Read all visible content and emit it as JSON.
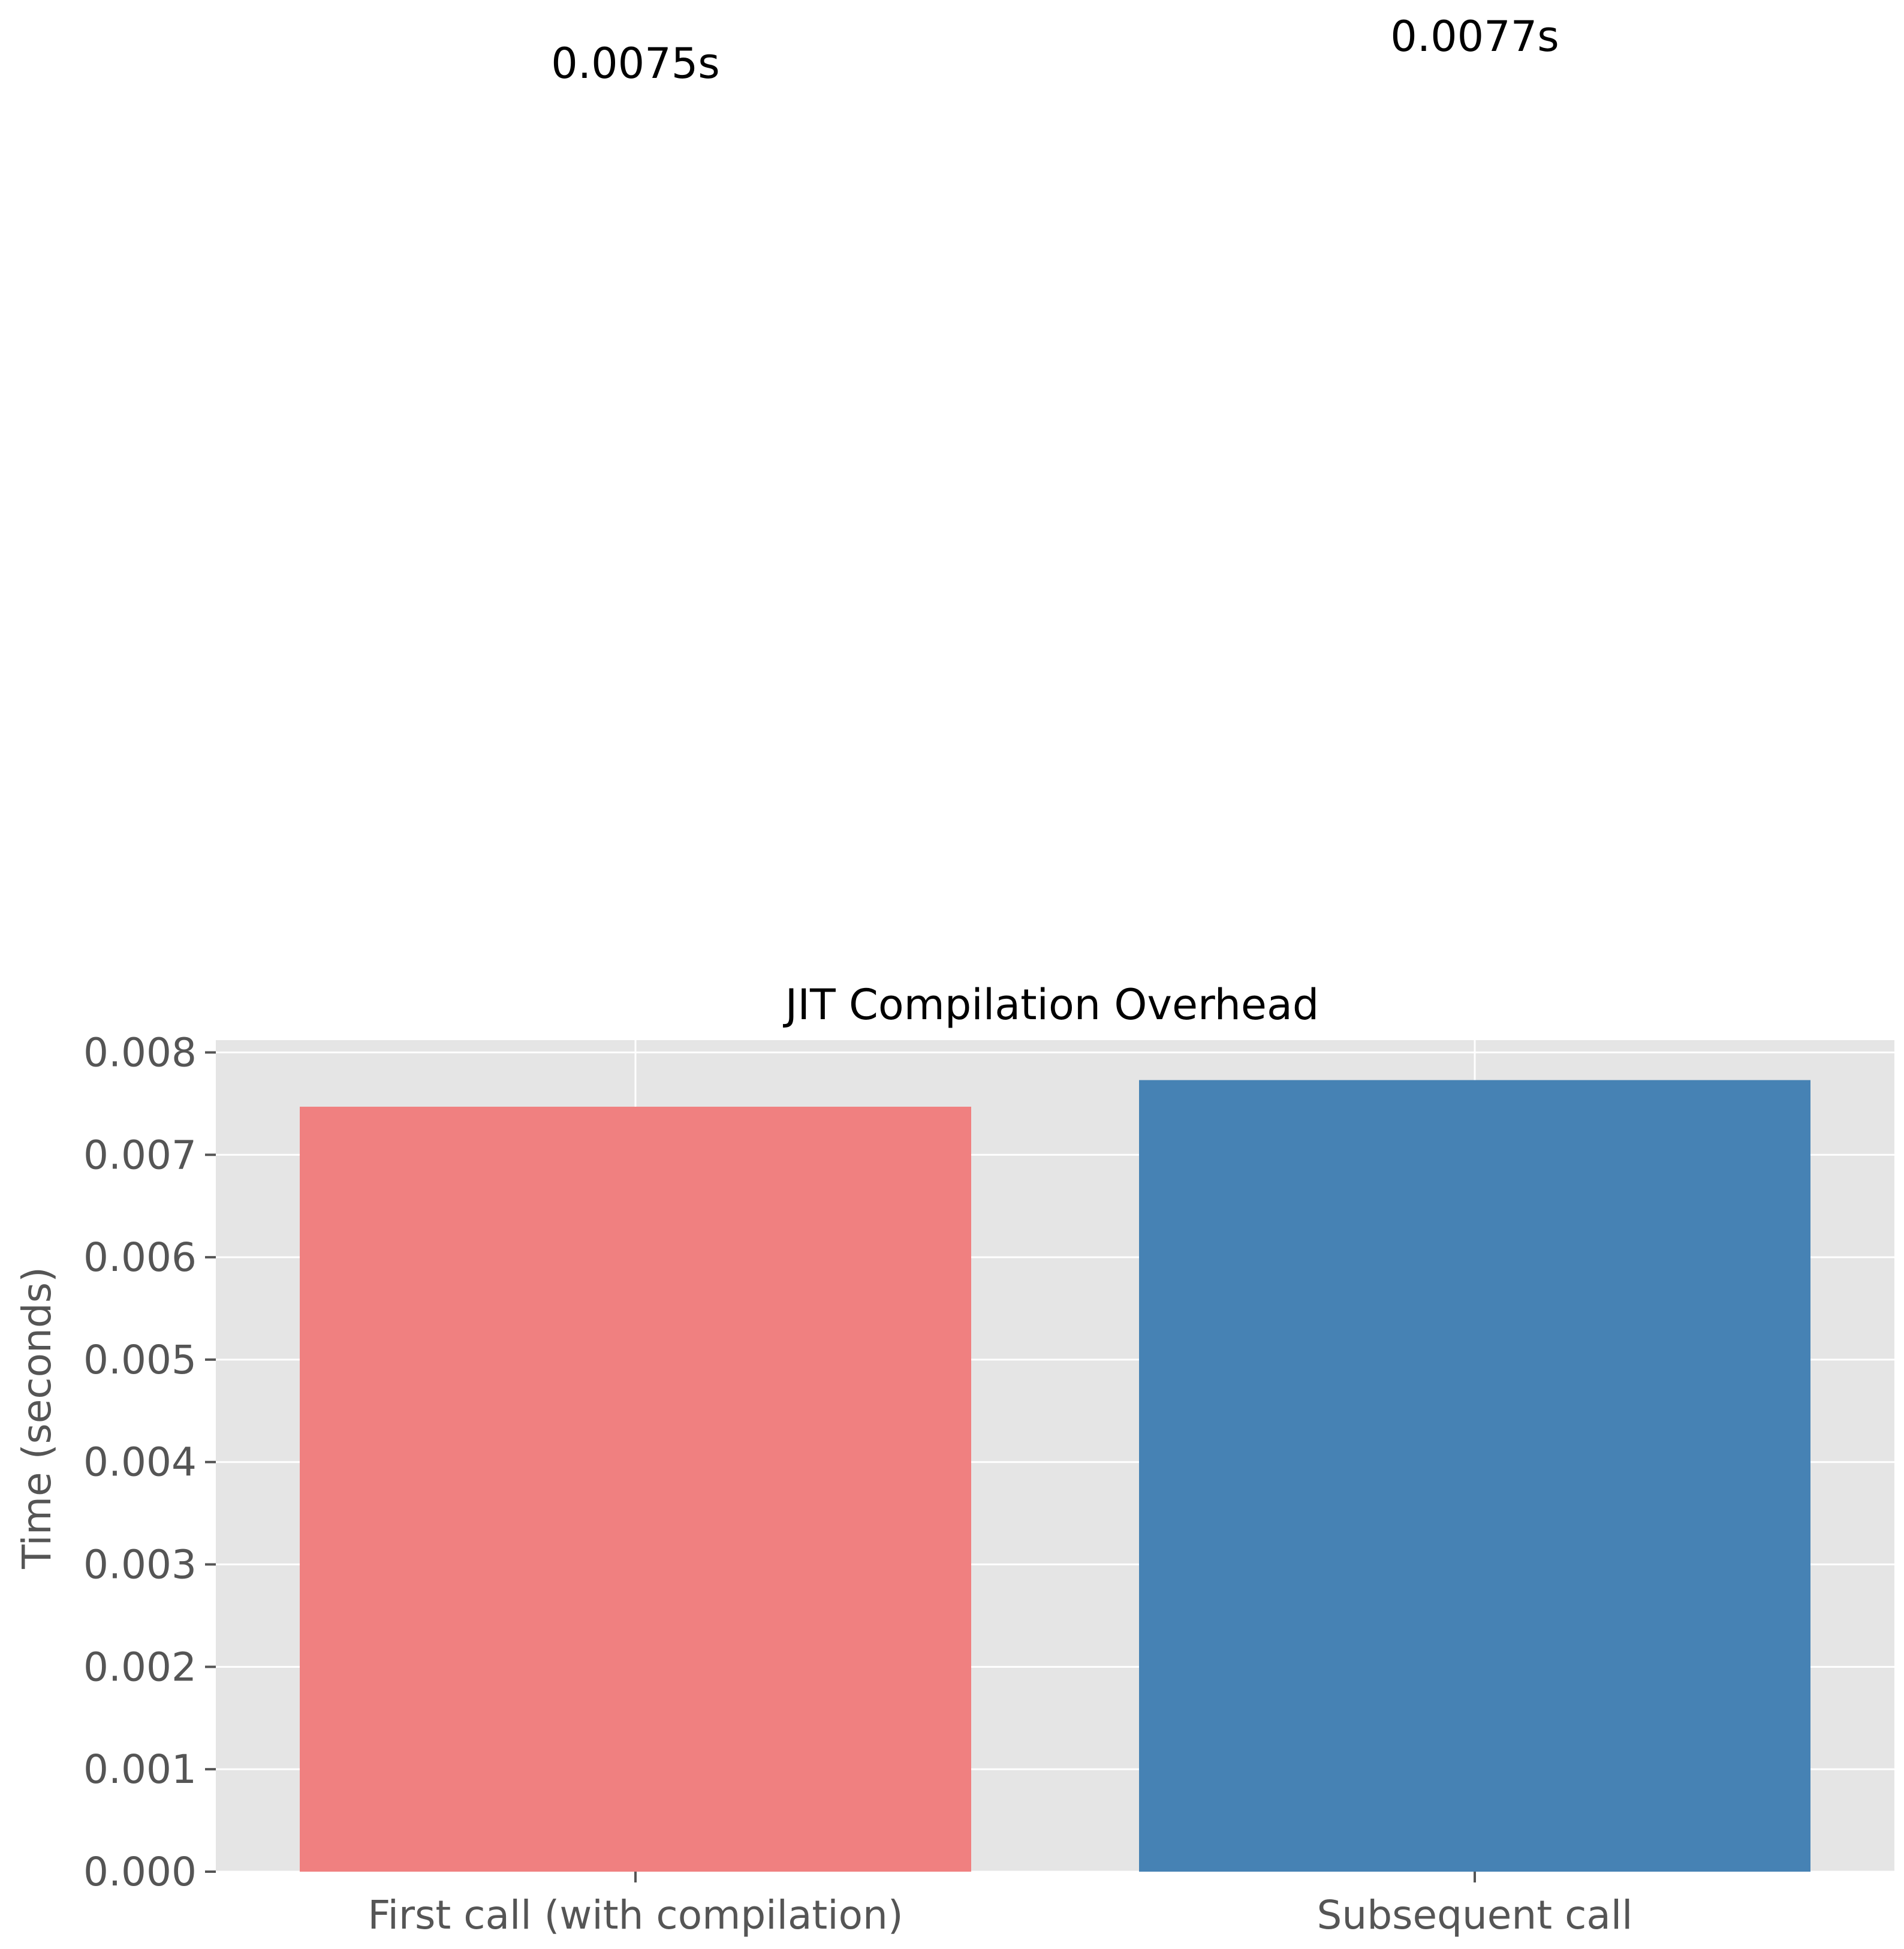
{
  "chart_data": {
    "type": "bar",
    "title": "JIT Compilation Overhead",
    "xlabel": "",
    "ylabel": "Time (seconds)",
    "categories": [
      "First call (with compilation)",
      "Subsequent call"
    ],
    "values": [
      0.00747,
      0.00773
    ],
    "bar_labels": [
      "0.0075s",
      "0.0077s"
    ],
    "colors": [
      "#f08080",
      "#4682b4"
    ],
    "ylim": [
      0,
      0.00812
    ],
    "yticks": [
      0.0,
      0.001,
      0.002,
      0.003,
      0.004,
      0.005,
      0.006,
      0.007,
      0.008
    ],
    "ytick_labels": [
      "0.000",
      "0.001",
      "0.002",
      "0.003",
      "0.004",
      "0.005",
      "0.006",
      "0.007",
      "0.008"
    ],
    "grid": true,
    "plot_background": "#e5e5e5",
    "grid_color": "#ffffff"
  }
}
